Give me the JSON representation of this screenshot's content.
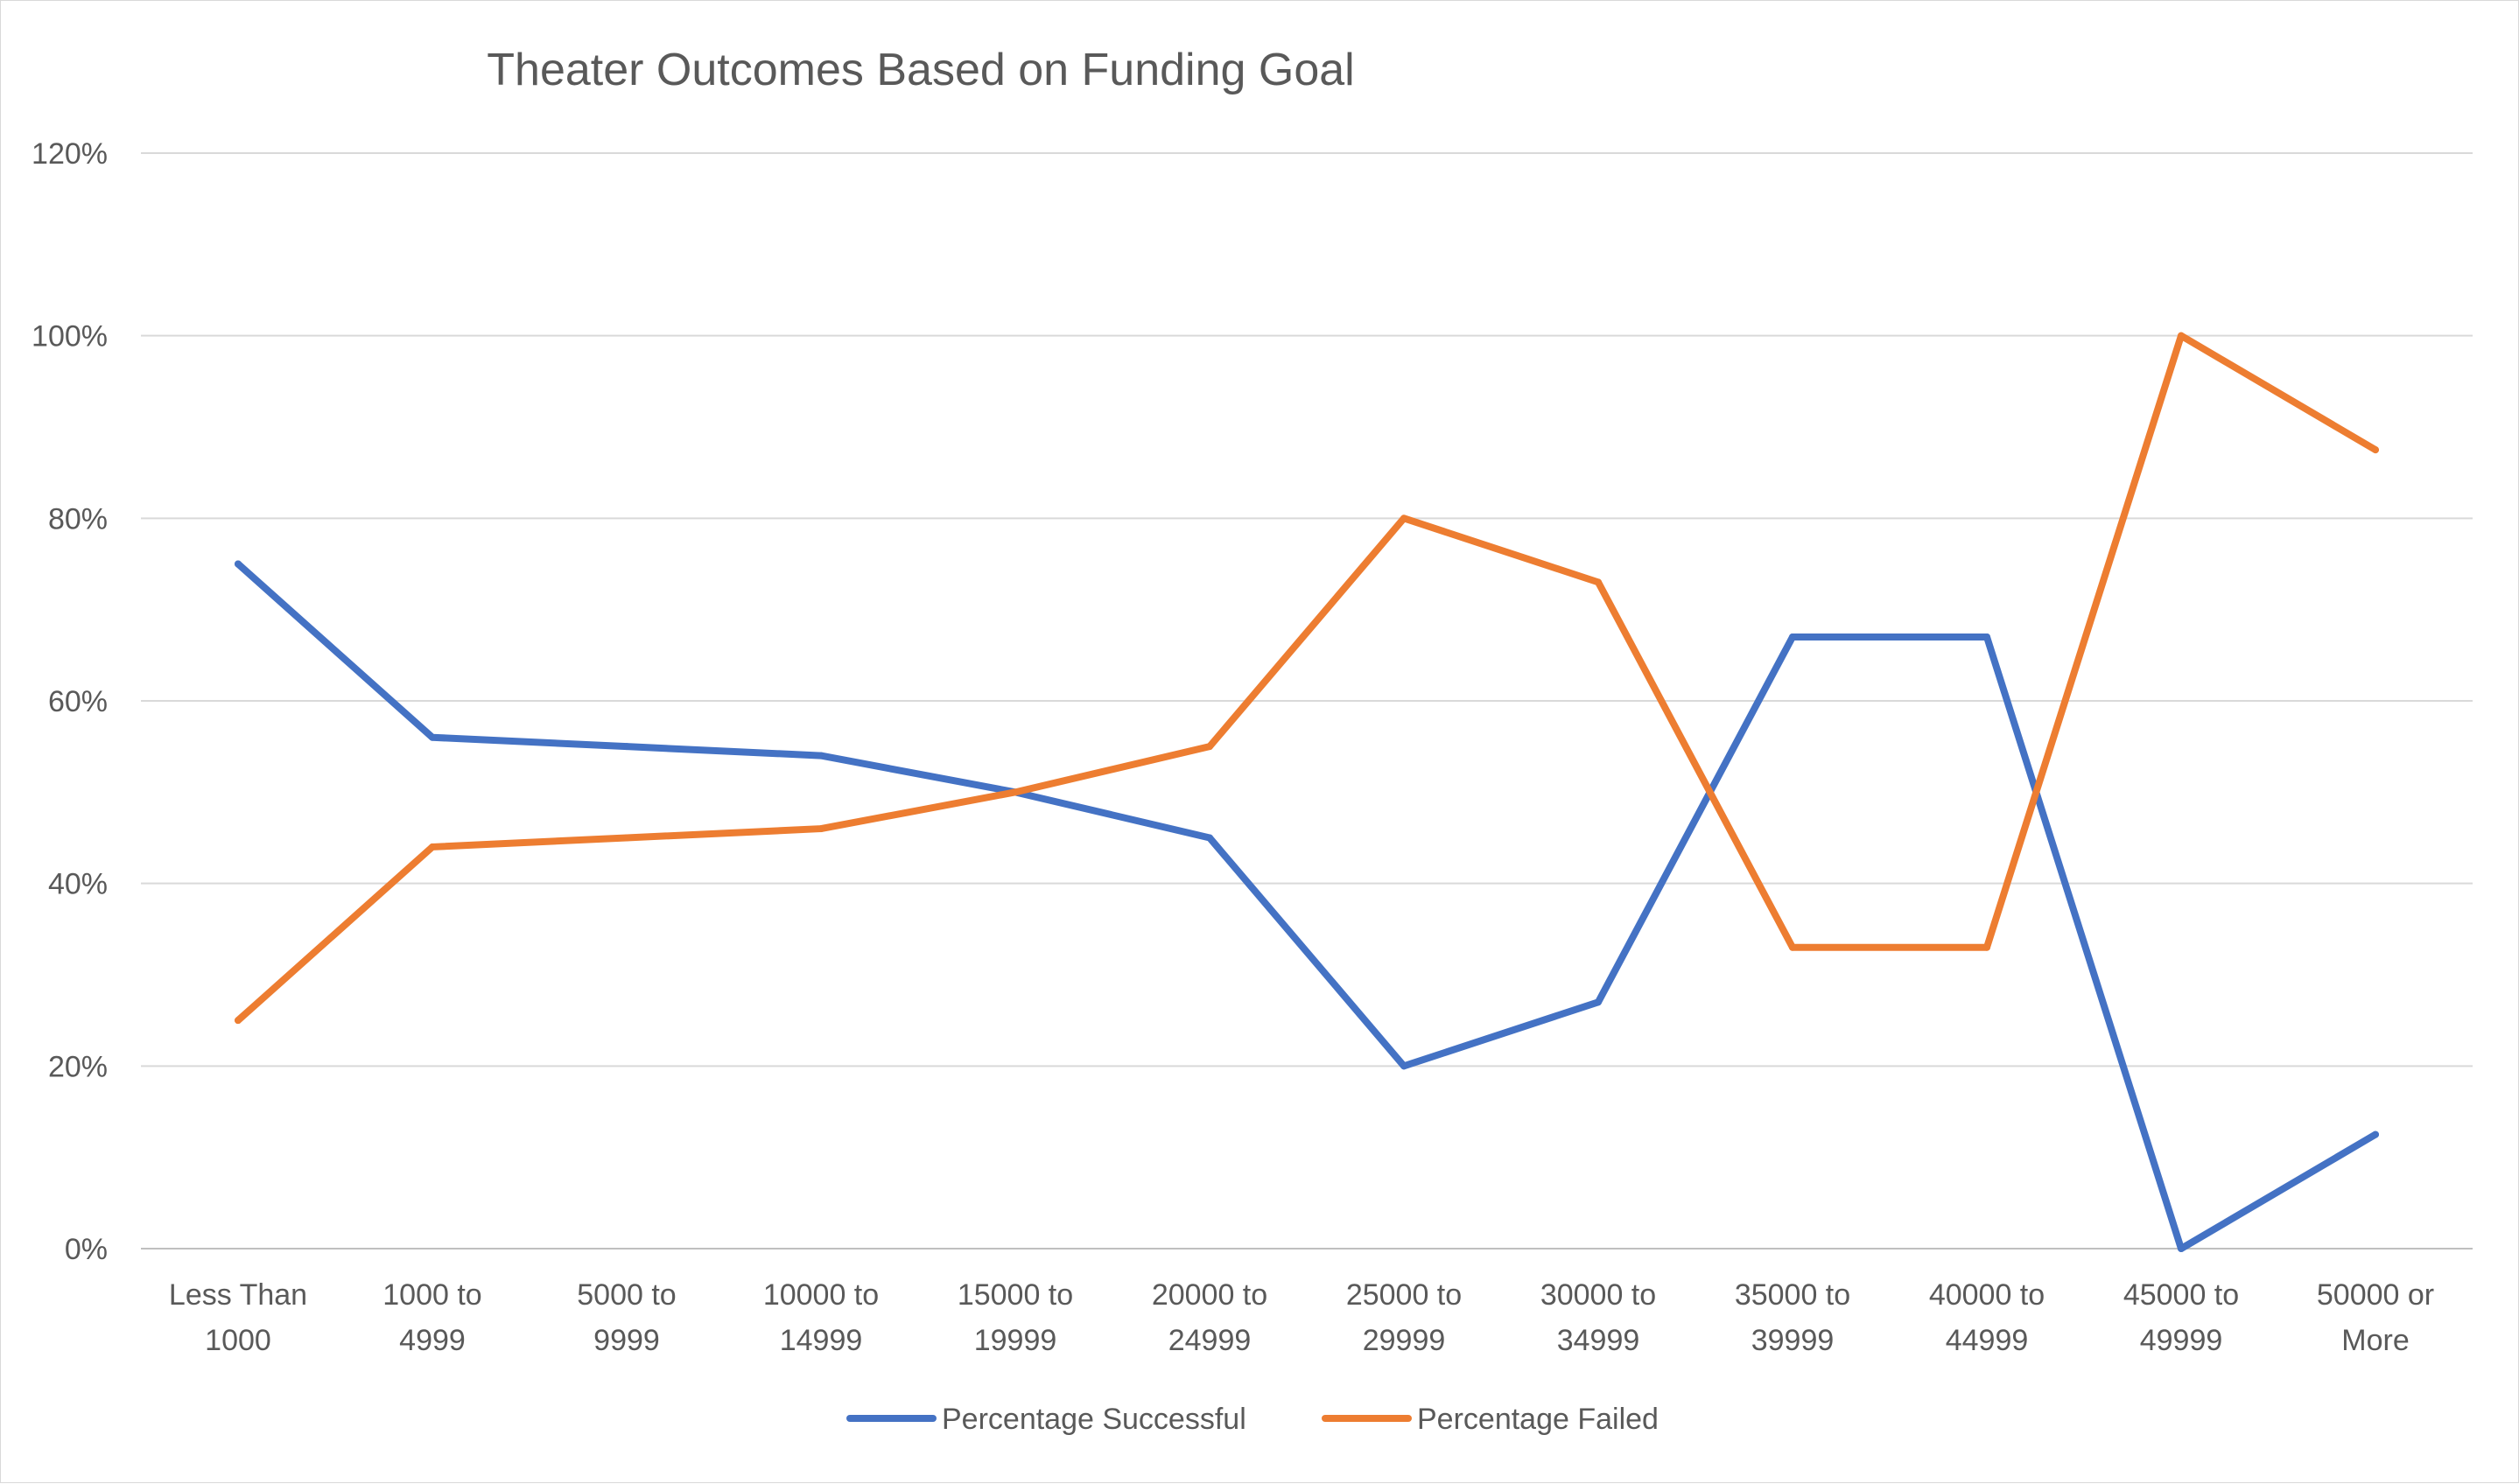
{
  "chart_data": {
    "type": "line",
    "title": "Theater Outcomes Based on Funding Goal",
    "xlabel": "",
    "ylabel": "",
    "ylim": [
      0,
      1.2
    ],
    "y_ticks": [
      "0%",
      "20%",
      "40%",
      "60%",
      "80%",
      "100%",
      "120%"
    ],
    "grid": true,
    "legend_position": "bottom",
    "categories": [
      [
        "Less Than",
        "1000"
      ],
      [
        "1000 to",
        "4999"
      ],
      [
        "5000 to",
        "9999"
      ],
      [
        "10000 to",
        "14999"
      ],
      [
        "15000 to",
        "19999"
      ],
      [
        "20000 to",
        "24999"
      ],
      [
        "25000 to",
        "29999"
      ],
      [
        "30000 to",
        "34999"
      ],
      [
        "35000 to",
        "39999"
      ],
      [
        "40000 to",
        "44999"
      ],
      [
        "45000 to",
        "49999"
      ],
      [
        "50000 or",
        "More"
      ]
    ],
    "series": [
      {
        "name": "Percentage Successful",
        "color": "#4472c4",
        "values": [
          0.75,
          0.56,
          0.55,
          0.54,
          0.5,
          0.45,
          0.2,
          0.27,
          0.67,
          0.67,
          0.0,
          0.125
        ]
      },
      {
        "name": "Percentage Failed",
        "color": "#ed7d31",
        "values": [
          0.25,
          0.44,
          0.45,
          0.46,
          0.5,
          0.55,
          0.8,
          0.73,
          0.33,
          0.33,
          1.0,
          0.875
        ]
      }
    ]
  }
}
